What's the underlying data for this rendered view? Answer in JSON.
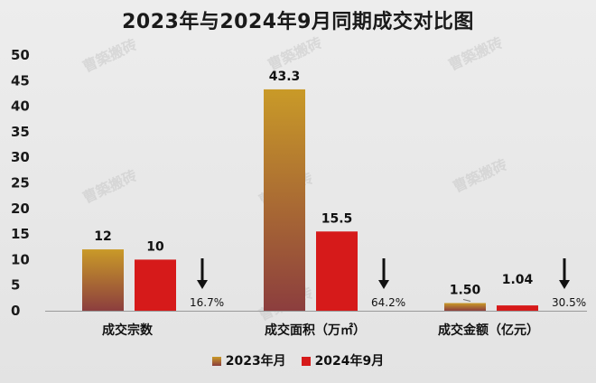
{
  "chart_data": {
    "type": "bar",
    "title": "2023年与2024年9月同期成交对比图",
    "categories": [
      "成交宗数",
      "成交面积（万㎡）",
      "成交金额（亿元）"
    ],
    "series": [
      {
        "name": "2023年月",
        "values": [
          12,
          43.3,
          1.5
        ],
        "labels": [
          "12",
          "43.3",
          "1.50"
        ]
      },
      {
        "name": "2024年9月",
        "values": [
          10,
          15.5,
          1.04
        ],
        "labels": [
          "10",
          "15.5",
          "1.04"
        ]
      }
    ],
    "changes": [
      "16.7%",
      "64.2%",
      "30.5%"
    ],
    "change_direction": "down",
    "ylim": [
      0,
      50
    ],
    "yticks": [
      "0",
      "5",
      "10",
      "15",
      "20",
      "25",
      "30",
      "35",
      "40",
      "45",
      "50"
    ],
    "xlabel": "",
    "ylabel": "",
    "grid": false,
    "legend_position": "bottom",
    "watermark": "曹築搬砖",
    "colors": {
      "series1_top": "#C99A28",
      "series1_bottom": "#8C3E3E",
      "series2": "#D61A1A",
      "arrow": "#111111"
    }
  }
}
